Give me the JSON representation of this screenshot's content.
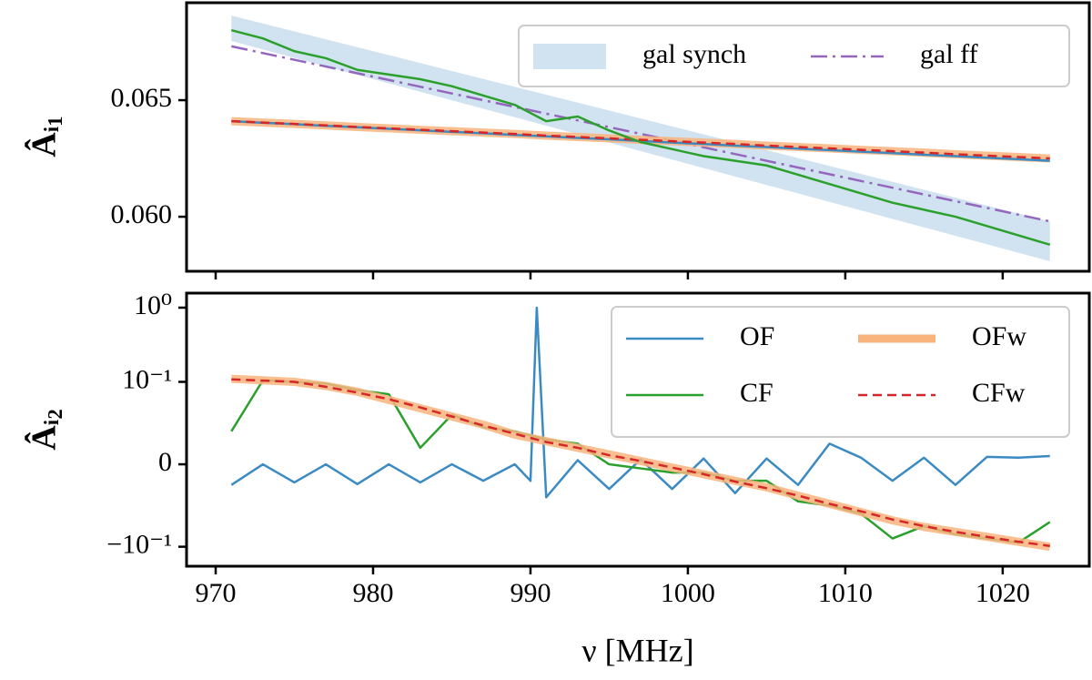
{
  "chart_data": [
    {
      "type": "line",
      "ylabel": "Âᵢ₁",
      "x": [
        971,
        973,
        975,
        977,
        979,
        981,
        983,
        985,
        987,
        989,
        991,
        993,
        995,
        997,
        999,
        1001,
        1003,
        1005,
        1007,
        1009,
        1011,
        1013,
        1015,
        1017,
        1019,
        1021,
        1023
      ],
      "xlim": [
        968.15,
        1025.5
      ],
      "ylim": [
        0.05766,
        0.06918
      ],
      "yticks": [
        {
          "value": 0.06,
          "label": "0.060"
        },
        0.065
      ],
      "legend": "upper right",
      "legend_columns": 2,
      "series": [
        {
          "name": "gal synch",
          "kind": "band",
          "color": "#b9d4ea",
          "x": [
            971,
            1023
          ],
          "lower": [
            0.06754,
            0.05809
          ],
          "upper": [
            0.06863,
            0.0598
          ]
        },
        {
          "name": "gal ff",
          "color": "#9467bd",
          "style": "dashdot",
          "x": [
            971,
            1023
          ],
          "values": [
            0.06731,
            0.0598
          ]
        },
        {
          "color": "#f8b47c",
          "width": 9,
          "values": [
            0.0641,
            0.06404,
            0.06398,
            0.06392,
            0.06385,
            0.06379,
            0.06373,
            0.06367,
            0.06361,
            0.06355,
            0.06348,
            0.06342,
            0.06336,
            0.0633,
            0.06324,
            0.06318,
            0.06312,
            0.06305,
            0.06299,
            0.06293,
            0.06287,
            0.06281,
            0.06275,
            0.06268,
            0.06262,
            0.06256,
            0.0625
          ]
        },
        {
          "color": "#3b8bc2",
          "values": [
            0.0641,
            0.06403,
            0.06397,
            0.0639,
            0.06384,
            0.06377,
            0.06371,
            0.06364,
            0.06358,
            0.06351,
            0.06345,
            0.06338,
            0.06332,
            0.06325,
            0.06318,
            0.06312,
            0.06305,
            0.06299,
            0.06292,
            0.06286,
            0.06279,
            0.06273,
            0.06266,
            0.0626,
            0.06253,
            0.06247,
            0.0624
          ]
        },
        {
          "color": "#d62728",
          "style": "dashed",
          "values": [
            0.0641,
            0.06404,
            0.06398,
            0.06392,
            0.06385,
            0.06379,
            0.06373,
            0.06367,
            0.06361,
            0.06355,
            0.06348,
            0.06342,
            0.06336,
            0.0633,
            0.06324,
            0.06318,
            0.06312,
            0.06305,
            0.06299,
            0.06293,
            0.06287,
            0.06281,
            0.06275,
            0.06268,
            0.06262,
            0.06256,
            0.0625
          ]
        },
        {
          "color": "#2ca02c",
          "values": [
            0.068,
            0.06765,
            0.0671,
            0.0668,
            0.0663,
            0.0661,
            0.0659,
            0.0656,
            0.0652,
            0.0648,
            0.0641,
            0.0643,
            0.0637,
            0.0632,
            0.0629,
            0.0626,
            0.0624,
            0.0622,
            0.0618,
            0.0614,
            0.061,
            0.0606,
            0.0603,
            0.06,
            0.0596,
            0.0592,
            0.0588
          ]
        }
      ]
    },
    {
      "type": "line",
      "xlabel": "ν [MHz]",
      "ylabel": "Âᵢ₂",
      "scale": "symlog",
      "linthresh": 0.1,
      "x": [
        971,
        973,
        975,
        977,
        979,
        981,
        983,
        985,
        987,
        989,
        991,
        993,
        995,
        997,
        999,
        1001,
        1003,
        1005,
        1007,
        1009,
        1011,
        1013,
        1015,
        1017,
        1019,
        1021,
        1023
      ],
      "xlim": [
        968.15,
        1025.5
      ],
      "ylim": [
        -0.183,
        1.57
      ],
      "xticks": [
        970,
        980,
        990,
        1000,
        1010,
        1020
      ],
      "yticks": [
        {
          "value": -0.1,
          "label": "−10⁻¹"
        },
        0,
        {
          "value": 0.1,
          "label": "10⁻¹"
        },
        {
          "value": 1,
          "label": "10⁰"
        }
      ],
      "legend": "upper right",
      "legend_columns": 2,
      "series": [
        {
          "name": "OF",
          "color": "#3b8bc2",
          "x": [
            971,
            973,
            975,
            977,
            979,
            981,
            983,
            985,
            987,
            989,
            990,
            990.4,
            991,
            993,
            995,
            997,
            999,
            1001,
            1003,
            1005,
            1007,
            1009,
            1011,
            1013,
            1015,
            1017,
            1019,
            1021,
            1023
          ],
          "values": [
            -0.025,
            0.0,
            -0.022,
            0.0,
            -0.024,
            0.0,
            -0.022,
            0.0,
            -0.02,
            0.0,
            -0.02,
            1.0,
            -0.04,
            0.005,
            -0.03,
            0.006,
            -0.03,
            0.007,
            -0.035,
            0.007,
            -0.025,
            0.025,
            0.008,
            -0.02,
            0.008,
            -0.025,
            0.009,
            0.008,
            0.01
          ]
        },
        {
          "name": "CF",
          "color": "#2ca02c",
          "values": [
            0.04,
            0.105,
            0.1,
            0.098,
            0.09,
            0.085,
            0.02,
            0.06,
            0.045,
            0.04,
            0.03,
            0.025,
            0.0,
            -0.005,
            -0.01,
            -0.01,
            -0.02,
            -0.02,
            -0.045,
            -0.05,
            -0.06,
            -0.09,
            -0.075,
            -0.085,
            -0.09,
            -0.095,
            -0.07
          ]
        },
        {
          "name": "OFw",
          "color": "#f8b47c",
          "width": 9,
          "values": [
            0.11,
            0.105,
            0.1,
            0.095,
            0.088,
            0.078,
            0.068,
            0.058,
            0.048,
            0.036,
            0.028,
            0.02,
            0.012,
            0.004,
            -0.004,
            -0.012,
            -0.02,
            -0.028,
            -0.038,
            -0.048,
            -0.058,
            -0.068,
            -0.076,
            -0.082,
            -0.088,
            -0.094,
            -0.1
          ]
        },
        {
          "name": "CFw",
          "color": "#d62728",
          "style": "dashed",
          "values": [
            0.108,
            0.104,
            0.1,
            0.094,
            0.087,
            0.079,
            0.069,
            0.058,
            0.047,
            0.037,
            0.027,
            0.02,
            0.011,
            0.004,
            -0.004,
            -0.012,
            -0.021,
            -0.029,
            -0.038,
            -0.048,
            -0.057,
            -0.067,
            -0.075,
            -0.082,
            -0.088,
            -0.094,
            -0.099
          ]
        }
      ]
    }
  ]
}
